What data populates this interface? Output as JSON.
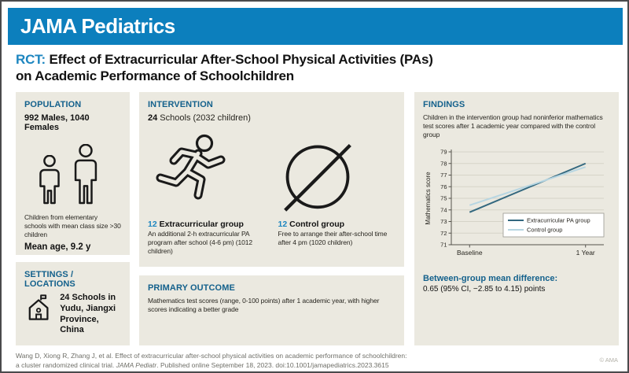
{
  "header": {
    "brand": "JAMA Pediatrics"
  },
  "title": {
    "tag": "RCT:",
    "line1": " Effect of Extracurricular After-School Physical Activities (PAs)",
    "line2": "on Academic Performance of Schoolchildren"
  },
  "population": {
    "heading": "POPULATION",
    "stat": "992 Males, 1040 Females",
    "description": "Children from elementary schools with mean class size >30 children",
    "mean_age": "Mean age, 9.2 y"
  },
  "settings": {
    "heading": "SETTINGS / LOCATIONS",
    "text": "24 Schools in Yudu, Jiangxi Province, China"
  },
  "intervention": {
    "heading": "INTERVENTION",
    "schools_count": "24",
    "schools_rest": " Schools (2032 children)",
    "groups": [
      {
        "count": "12",
        "name": " Extracurricular group",
        "description": "An additional 2-h extracurricular PA program after school (4-6 pm) (1012 children)"
      },
      {
        "count": "12",
        "name": " Control group",
        "description": "Free to arrange their after-school time after 4 pm (1020 children)"
      }
    ]
  },
  "primary_outcome": {
    "heading": "PRIMARY OUTCOME",
    "text": "Mathematics test scores (range, 0-100 points) after 1 academic year, with higher scores indicating a better grade"
  },
  "findings": {
    "heading": "FINDINGS",
    "summary": "Children in the intervention group had noninferior mathematics test scores after 1 academic year compared with the control group",
    "difference_label": "Between-group mean difference:",
    "difference_value": "0.65 (95% CI, −2.85 to 4.15) points"
  },
  "chart_data": {
    "type": "line",
    "x_categories": [
      "Baseline",
      "1 Year"
    ],
    "series": [
      {
        "name": "Extracurricular PA group",
        "values": [
          73.8,
          78.0
        ],
        "color": "#33687f"
      },
      {
        "name": "Control group",
        "values": [
          74.4,
          77.7
        ],
        "color": "#b7d6e2"
      }
    ],
    "ylabel": "Mathematics score",
    "xlabel": "",
    "title": "",
    "ylim": [
      71,
      79
    ],
    "yticks": [
      71,
      72,
      73,
      74,
      75,
      76,
      77,
      78,
      79
    ],
    "grid": true,
    "legend_position": "inside-bottom-right"
  },
  "icons": {
    "population": [
      "female-figure-icon",
      "male-figure-icon"
    ],
    "settings": "school-building-icon",
    "extracurricular_group": "runner-icon",
    "control_group": "prohibited-circle-icon"
  },
  "footer": {
    "citation_line1": "Wang D, Xiong R, Zhang J, et al. Effect of extracurricular after-school physical activities on academic performance of schoolchildren:",
    "citation_line2_pre": "a cluster randomized clinical trial. ",
    "citation_journal": "JAMA Pediatr",
    "citation_line2_post": ". Published online September 18, 2023. doi:10.1001/jamapediatrics.2023.3615",
    "copyright": "© AMA"
  },
  "colors": {
    "brand_blue": "#0c7fbd",
    "heading_blue": "#14618c",
    "accent_blue": "#1d86c0",
    "panel_background": "#ebe9e0",
    "line_dark": "#33687f",
    "line_light": "#b7d6e2"
  }
}
